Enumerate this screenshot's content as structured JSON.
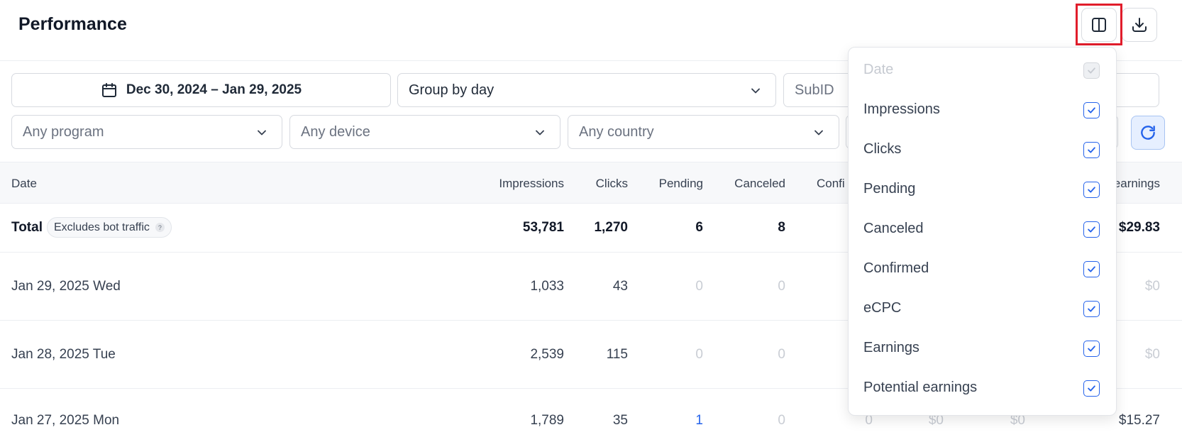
{
  "header": {
    "title": "Performance",
    "columns_icon": "columns-icon",
    "download_icon": "download-icon"
  },
  "filters": {
    "date_range": "Dec 30, 2024 – Jan 29, 2025",
    "group_by": "Group by day",
    "subid_placeholder": "SubID",
    "program_placeholder": "Any program",
    "device_placeholder": "Any device",
    "country_placeholder": "Any country"
  },
  "table": {
    "columns": [
      "Date",
      "Impressions",
      "Clicks",
      "Pending",
      "Canceled",
      "Confi",
      "earnings"
    ],
    "total": {
      "label": "Total",
      "badge": "Excludes bot traffic",
      "badge_help": "?",
      "impressions": "53,781",
      "clicks": "1,270",
      "pending": "6",
      "canceled": "8",
      "earnings": "$29.83"
    },
    "rows": [
      {
        "date": "Jan 29, 2025 Wed",
        "impressions": "1,033",
        "clicks": "43",
        "pending": "0",
        "canceled": "0",
        "earnings": "$0"
      },
      {
        "date": "Jan 28, 2025 Tue",
        "impressions": "2,539",
        "clicks": "115",
        "pending": "0",
        "canceled": "0",
        "earnings": "$0"
      },
      {
        "date": "Jan 27, 2025 Mon",
        "impressions": "1,789",
        "clicks": "35",
        "pending": "1",
        "canceled": "0",
        "confirmed": "0",
        "ecpc": "$0",
        "col8": "$0",
        "earnings": "$15.27"
      }
    ]
  },
  "column_menu": {
    "items": [
      {
        "label": "Date",
        "checked": true,
        "disabled": true
      },
      {
        "label": "Impressions",
        "checked": true
      },
      {
        "label": "Clicks",
        "checked": true
      },
      {
        "label": "Pending",
        "checked": true
      },
      {
        "label": "Canceled",
        "checked": true
      },
      {
        "label": "Confirmed",
        "checked": true
      },
      {
        "label": "eCPC",
        "checked": true
      },
      {
        "label": "Earnings",
        "checked": true
      },
      {
        "label": "Potential earnings",
        "checked": true
      }
    ]
  },
  "colors": {
    "accent": "#2563eb",
    "highlight": "#e11d2b",
    "muted": "#c9cdd4"
  }
}
